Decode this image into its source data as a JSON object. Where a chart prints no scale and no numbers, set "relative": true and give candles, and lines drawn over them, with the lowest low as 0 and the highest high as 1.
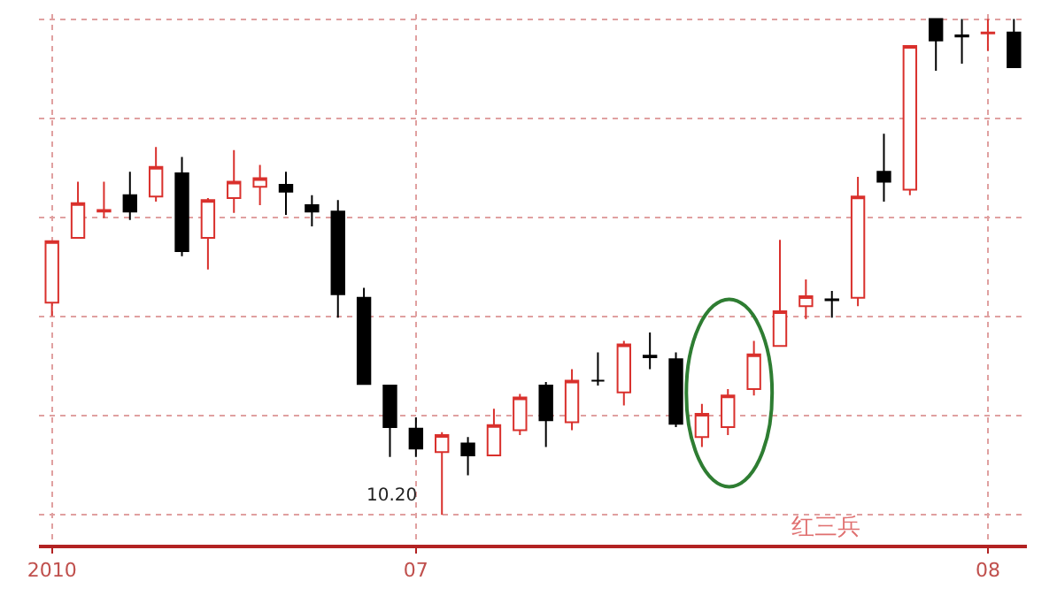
{
  "chart_data": {
    "type": "candlestick",
    "relative": true,
    "grid": true,
    "categories": [
      "2010",
      null,
      null,
      null,
      null,
      null,
      null,
      null,
      null,
      null,
      null,
      null,
      null,
      null,
      "07",
      null,
      null,
      null,
      null,
      null,
      null,
      null,
      null,
      null,
      null,
      null,
      null,
      null,
      null,
      null,
      null,
      null,
      null,
      null,
      null,
      null,
      "08",
      null
    ],
    "ohlc": [
      [
        0.428,
        0.552,
        0.401,
        0.552
      ],
      [
        0.559,
        0.672,
        0.559,
        0.629
      ],
      [
        0.612,
        0.672,
        0.599,
        0.615
      ],
      [
        0.645,
        0.692,
        0.595,
        0.612
      ],
      [
        0.642,
        0.742,
        0.632,
        0.702
      ],
      [
        0.689,
        0.722,
        0.522,
        0.532
      ],
      [
        0.559,
        0.639,
        0.495,
        0.635
      ],
      [
        0.639,
        0.736,
        0.609,
        0.672
      ],
      [
        0.662,
        0.706,
        0.625,
        0.679
      ],
      [
        0.666,
        0.692,
        0.605,
        0.652
      ],
      [
        0.625,
        0.645,
        0.582,
        0.612
      ],
      [
        0.612,
        0.635,
        0.398,
        0.445
      ],
      [
        0.438,
        0.458,
        0.264,
        0.264
      ],
      [
        0.261,
        0.261,
        0.117,
        0.177
      ],
      [
        0.174,
        0.197,
        0.117,
        0.134
      ],
      [
        0.127,
        0.167,
        0.0,
        0.161
      ],
      [
        0.144,
        0.157,
        0.08,
        0.12
      ],
      [
        0.12,
        0.214,
        0.12,
        0.181
      ],
      [
        0.171,
        0.244,
        0.161,
        0.237
      ],
      [
        0.261,
        0.268,
        0.137,
        0.191
      ],
      [
        0.187,
        0.294,
        0.171,
        0.271
      ],
      [
        0.271,
        0.328,
        0.261,
        0.271
      ],
      [
        0.247,
        0.351,
        0.221,
        0.344
      ],
      [
        0.321,
        0.368,
        0.294,
        0.318
      ],
      [
        0.314,
        0.328,
        0.177,
        0.184
      ],
      [
        0.157,
        0.224,
        0.137,
        0.204
      ],
      [
        0.177,
        0.254,
        0.161,
        0.241
      ],
      [
        0.254,
        0.351,
        0.241,
        0.324
      ],
      [
        0.341,
        0.555,
        0.341,
        0.411
      ],
      [
        0.421,
        0.475,
        0.395,
        0.441
      ],
      [
        0.435,
        0.452,
        0.398,
        0.433
      ],
      [
        0.438,
        0.682,
        0.421,
        0.642
      ],
      [
        0.692,
        0.769,
        0.632,
        0.672
      ],
      [
        0.656,
        0.946,
        0.645,
        0.946
      ],
      [
        1.0,
        1.0,
        0.896,
        0.957
      ],
      [
        0.967,
        1.0,
        0.91,
        0.965
      ],
      [
        0.971,
        1.0,
        0.936,
        0.973
      ],
      [
        0.973,
        1.0,
        0.903,
        0.903
      ]
    ],
    "colors": [
      "#d9302c",
      "#d9302c",
      "#d9302c",
      "#000000",
      "#d9302c",
      "#000000",
      "#d9302c",
      "#d9302c",
      "#d9302c",
      "#000000",
      "#000000",
      "#000000",
      "#000000",
      "#000000",
      "#000000",
      "#d9302c",
      "#000000",
      "#d9302c",
      "#d9302c",
      "#000000",
      "#d9302c",
      "#000000",
      "#d9302c",
      "#000000",
      "#000000",
      "#d9302c",
      "#d9302c",
      "#d9302c",
      "#d9302c",
      "#d9302c",
      "#000000",
      "#d9302c",
      "#000000",
      "#d9302c",
      "#000000",
      "#000000",
      "#d9302c",
      "#000000"
    ],
    "annotations": [
      "10.20",
      "红三兵"
    ]
  }
}
